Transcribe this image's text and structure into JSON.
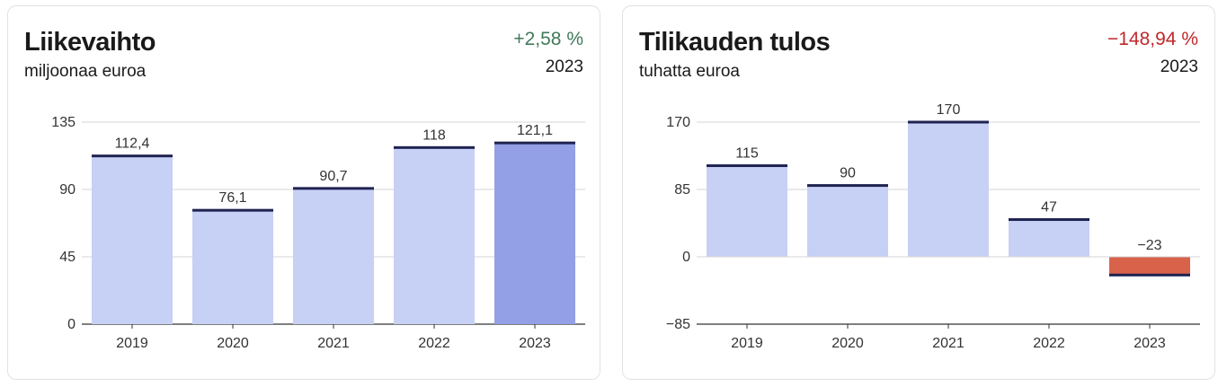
{
  "chart_data": [
    {
      "type": "bar",
      "title": "Liikevaihto",
      "subtitle": "miljoonaa euroa",
      "change": "+2,58 %",
      "change_color": "#3f7a5a",
      "year": "2023",
      "categories": [
        "2019",
        "2020",
        "2021",
        "2022",
        "2023"
      ],
      "values": [
        112.4,
        76.1,
        90.7,
        118,
        121.1
      ],
      "value_labels": [
        "112,4",
        "76,1",
        "90,7",
        "118",
        "121,1"
      ],
      "ylim": [
        0,
        135
      ],
      "yticks": [
        0,
        45,
        90,
        135
      ],
      "ytick_labels": [
        "0",
        "45",
        "90",
        "135"
      ],
      "grid": true,
      "colors": {
        "bar": "#c7d0f5",
        "highlight_bar": "#93a0e6",
        "negative_bar": "#d9624a",
        "cap": "#1f2350",
        "grid": "#d6d6d6",
        "axis": "#333333"
      },
      "highlight_index": 4
    },
    {
      "type": "bar",
      "title": "Tilikauden tulos",
      "subtitle": "tuhatta euroa",
      "change": "−148,94 %",
      "change_color": "#c0282c",
      "year": "2023",
      "categories": [
        "2019",
        "2020",
        "2021",
        "2022",
        "2023"
      ],
      "values": [
        115,
        90,
        170,
        47,
        -23
      ],
      "value_labels": [
        "115",
        "90",
        "170",
        "47",
        "−23"
      ],
      "ylim": [
        -85,
        170
      ],
      "yticks": [
        -85,
        0,
        85,
        170
      ],
      "ytick_labels": [
        "−85",
        "0",
        "85",
        "170"
      ],
      "grid": true,
      "colors": {
        "bar": "#c7d0f5",
        "highlight_bar": "#c7d0f5",
        "negative_bar": "#d9624a",
        "cap": "#1f2350",
        "grid": "#d6d6d6",
        "axis": "#333333"
      },
      "highlight_index": -1
    }
  ]
}
